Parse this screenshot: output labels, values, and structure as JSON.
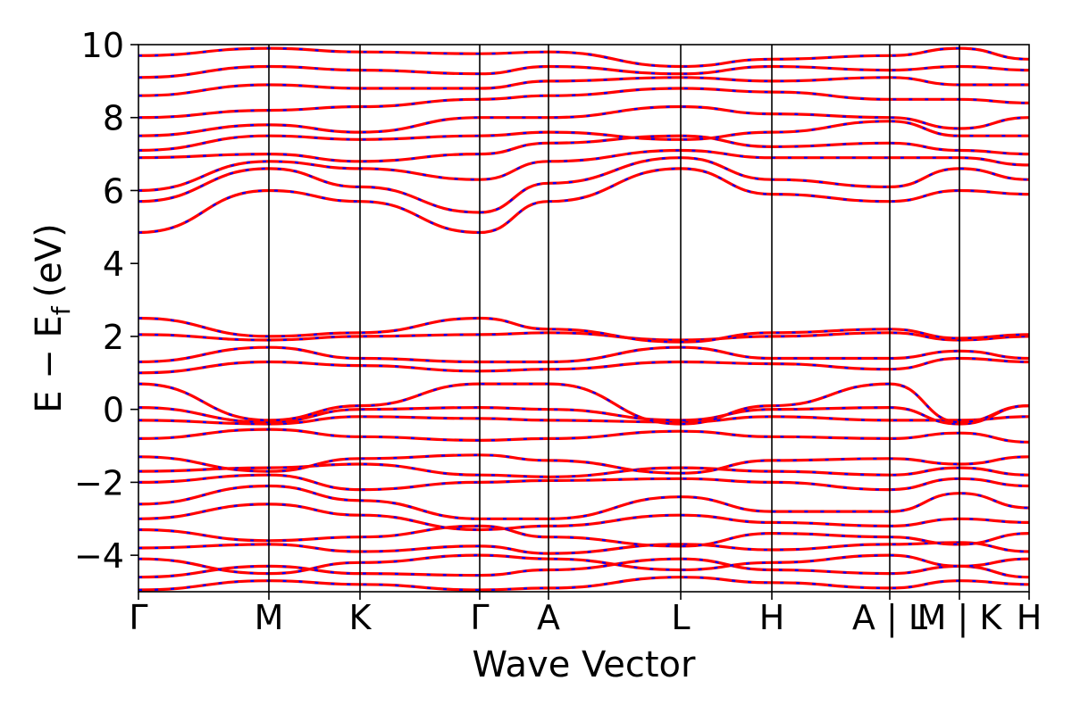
{
  "chart_data": {
    "type": "line",
    "title": "",
    "xlabel": "Wave Vector",
    "ylabel_main": "E − E",
    "ylabel_sub": "f",
    "ylabel_unit": "(eV)",
    "ylim": [
      -5,
      10
    ],
    "yticks": [
      -4,
      -2,
      0,
      2,
      4,
      6,
      8,
      10
    ],
    "ytick_labels": [
      "−4",
      "−2",
      "0",
      "2",
      "4",
      "6",
      "8",
      "10"
    ],
    "grid": false,
    "legend": "none",
    "path_segments": [
      {
        "labels": [
          "Γ",
          "M",
          "K",
          "Γ",
          "A",
          "L",
          "H",
          "A"
        ],
        "x": [
          0,
          1.46,
          2.48,
          3.82,
          4.59,
          6.07,
          7.09,
          8.41
        ]
      },
      {
        "labels": [
          "L",
          "M"
        ],
        "x": [
          8.41,
          9.19
        ]
      },
      {
        "labels": [
          "K",
          "H"
        ],
        "x": [
          9.19,
          9.97
        ]
      }
    ],
    "xtick_labels": [
      "Γ",
      "M",
      "K",
      "Γ",
      "A",
      "L",
      "H",
      "A | L",
      "M | K",
      "H"
    ],
    "series_colors": {
      "spin_up": "#ff0000",
      "spin_down": "#0000ff"
    },
    "bands": [
      {
        "x": [
          0,
          1.46,
          2.48,
          3.82,
          4.59,
          6.07,
          7.09,
          8.41,
          9.19,
          9.97
        ],
        "y": [
          -4.95,
          -4.7,
          -4.8,
          -4.95,
          -4.9,
          -4.6,
          -4.75,
          -4.9,
          -4.7,
          -4.8
        ]
      },
      {
        "x": [
          0,
          1.46,
          2.48,
          3.82,
          4.59,
          6.07,
          7.09,
          8.41,
          9.19,
          9.97
        ],
        "y": [
          -4.6,
          -4.3,
          -4.5,
          -4.55,
          -4.4,
          -4.1,
          -4.4,
          -4.5,
          -4.3,
          -4.6
        ]
      },
      {
        "x": [
          0,
          1.46,
          2.48,
          3.82,
          4.59,
          6.07,
          7.09,
          8.41,
          9.19,
          9.97
        ],
        "y": [
          -4.1,
          -4.5,
          -4.2,
          -4.0,
          -4.1,
          -4.4,
          -4.2,
          -4.0,
          -4.3,
          -4.1
        ]
      },
      {
        "x": [
          0,
          1.46,
          2.48,
          3.82,
          4.59,
          6.07,
          7.09,
          8.41,
          9.19,
          9.97
        ],
        "y": [
          -3.8,
          -3.7,
          -3.9,
          -3.75,
          -3.95,
          -3.7,
          -3.85,
          -3.7,
          -3.65,
          -3.9
        ]
      },
      {
        "x": [
          0,
          1.46,
          2.48,
          3.82,
          4.59,
          6.07,
          7.09,
          8.41,
          9.19,
          9.97
        ],
        "y": [
          -3.3,
          -3.6,
          -3.5,
          -3.2,
          -3.5,
          -3.75,
          -3.4,
          -3.5,
          -3.7,
          -3.4
        ]
      },
      {
        "x": [
          0,
          1.46,
          2.48,
          3.82,
          4.59,
          6.07,
          7.09,
          8.41,
          9.19,
          9.97
        ],
        "y": [
          -3.0,
          -2.6,
          -2.9,
          -3.3,
          -3.2,
          -2.9,
          -3.1,
          -3.2,
          -3.0,
          -3.1
        ]
      },
      {
        "x": [
          0,
          1.46,
          2.48,
          3.82,
          4.59,
          6.07,
          7.09,
          8.41,
          9.19,
          9.97
        ],
        "y": [
          -2.6,
          -2.1,
          -2.5,
          -3.0,
          -3.0,
          -2.4,
          -2.8,
          -2.8,
          -2.3,
          -2.7
        ]
      },
      {
        "x": [
          0,
          1.46,
          2.48,
          3.82,
          4.59,
          6.07,
          7.09,
          8.41,
          9.19,
          9.97
        ],
        "y": [
          -2.0,
          -1.8,
          -2.2,
          -2.0,
          -1.95,
          -1.9,
          -2.0,
          -2.2,
          -1.9,
          -2.1
        ]
      },
      {
        "x": [
          0,
          1.46,
          2.48,
          3.82,
          4.59,
          6.07,
          7.09,
          8.41,
          9.19,
          9.97
        ],
        "y": [
          -1.7,
          -1.6,
          -1.5,
          -1.8,
          -1.85,
          -1.6,
          -1.7,
          -1.8,
          -1.6,
          -1.8
        ]
      },
      {
        "x": [
          0,
          1.46,
          2.48,
          3.82,
          4.59,
          6.07,
          7.09,
          8.41,
          9.19,
          9.97
        ],
        "y": [
          -1.3,
          -1.7,
          -1.35,
          -1.25,
          -1.4,
          -1.75,
          -1.4,
          -1.35,
          -1.5,
          -1.3
        ]
      },
      {
        "x": [
          0,
          1.46,
          2.48,
          3.82,
          4.59,
          6.07,
          7.09,
          8.41,
          9.19,
          9.97
        ],
        "y": [
          -0.8,
          -0.55,
          -0.75,
          -0.85,
          -0.8,
          -0.6,
          -0.75,
          -0.8,
          -0.65,
          -0.9
        ]
      },
      {
        "x": [
          0,
          1.46,
          2.48,
          3.82,
          4.59,
          6.07,
          7.09,
          8.41,
          9.19,
          9.97
        ],
        "y": [
          -0.3,
          -0.4,
          -0.2,
          -0.25,
          -0.3,
          -0.35,
          -0.2,
          -0.3,
          -0.3,
          -0.2
        ]
      },
      {
        "x": [
          0,
          1.46,
          2.48,
          3.82,
          4.59,
          6.07,
          7.09,
          8.41,
          9.19,
          9.97
        ],
        "y": [
          0.05,
          -0.35,
          0.0,
          0.05,
          0.0,
          -0.3,
          0.0,
          0.05,
          -0.4,
          0.1
        ]
      },
      {
        "x": [
          0,
          1.46,
          2.48,
          3.82,
          4.59,
          6.07,
          7.09,
          8.41,
          9.19,
          9.97
        ],
        "y": [
          0.7,
          -0.3,
          0.1,
          0.7,
          0.7,
          -0.4,
          0.1,
          0.7,
          -0.35,
          0.1
        ]
      },
      {
        "x": [
          0,
          1.46,
          2.48,
          3.82,
          4.59,
          6.07,
          7.09,
          8.41,
          9.19,
          9.97
        ],
        "y": [
          1.0,
          1.3,
          1.2,
          1.05,
          1.1,
          1.3,
          1.25,
          1.1,
          1.4,
          1.3
        ]
      },
      {
        "x": [
          0,
          1.46,
          2.48,
          3.82,
          4.59,
          6.07,
          7.09,
          8.41,
          9.19,
          9.97
        ],
        "y": [
          1.3,
          1.7,
          1.4,
          1.3,
          1.3,
          1.7,
          1.4,
          1.4,
          1.6,
          1.4
        ]
      },
      {
        "x": [
          0,
          1.46,
          2.48,
          3.82,
          4.59,
          6.07,
          7.09,
          8.41,
          9.19,
          9.97
        ],
        "y": [
          2.05,
          1.9,
          2.0,
          2.05,
          2.1,
          1.9,
          2.0,
          2.1,
          1.9,
          2.0
        ]
      },
      {
        "x": [
          0,
          1.46,
          2.48,
          3.82,
          4.59,
          6.07,
          7.09,
          8.41,
          9.19,
          9.97
        ],
        "y": [
          2.5,
          2.0,
          2.1,
          2.5,
          2.2,
          1.85,
          2.1,
          2.2,
          1.95,
          2.05
        ]
      },
      {
        "x": [
          0,
          1.46,
          2.48,
          3.82,
          4.59,
          6.07,
          7.09,
          8.41,
          9.19,
          9.97
        ],
        "y": [
          4.85,
          6.0,
          5.7,
          4.85,
          5.7,
          6.6,
          5.9,
          5.7,
          6.0,
          5.9
        ]
      },
      {
        "x": [
          0,
          1.46,
          2.48,
          3.82,
          4.59,
          6.07,
          7.09,
          8.41,
          9.19,
          9.97
        ],
        "y": [
          5.7,
          6.6,
          6.1,
          5.4,
          6.2,
          6.9,
          6.3,
          6.1,
          6.6,
          6.3
        ]
      },
      {
        "x": [
          0,
          1.46,
          2.48,
          3.82,
          4.59,
          6.07,
          7.09,
          8.41,
          9.19,
          9.97
        ],
        "y": [
          6.0,
          6.8,
          6.6,
          6.3,
          6.8,
          7.1,
          6.9,
          6.9,
          6.9,
          6.7
        ]
      },
      {
        "x": [
          0,
          1.46,
          2.48,
          3.82,
          4.59,
          6.07,
          7.09,
          8.41,
          9.19,
          9.97
        ],
        "y": [
          6.9,
          7.0,
          6.8,
          7.0,
          7.3,
          7.5,
          7.2,
          7.3,
          7.1,
          7.0
        ]
      },
      {
        "x": [
          0,
          1.46,
          2.48,
          3.82,
          4.59,
          6.07,
          7.09,
          8.41,
          9.19,
          9.97
        ],
        "y": [
          7.1,
          7.5,
          7.4,
          7.5,
          7.6,
          7.4,
          7.6,
          7.9,
          7.5,
          7.5
        ]
      },
      {
        "x": [
          0,
          1.46,
          2.48,
          3.82,
          4.59,
          6.07,
          7.09,
          8.41,
          9.19,
          9.97
        ],
        "y": [
          7.5,
          7.8,
          7.6,
          8.0,
          8.0,
          8.3,
          8.1,
          8.0,
          7.7,
          8.0
        ]
      },
      {
        "x": [
          0,
          1.46,
          2.48,
          3.82,
          4.59,
          6.07,
          7.09,
          8.41,
          9.19,
          9.97
        ],
        "y": [
          8.0,
          8.2,
          8.3,
          8.5,
          8.6,
          8.8,
          8.7,
          8.5,
          8.5,
          8.4
        ]
      },
      {
        "x": [
          0,
          1.46,
          2.48,
          3.82,
          4.59,
          6.07,
          7.09,
          8.41,
          9.19,
          9.97
        ],
        "y": [
          8.6,
          8.9,
          8.8,
          8.8,
          9.0,
          9.1,
          9.0,
          9.1,
          8.9,
          8.9
        ]
      },
      {
        "x": [
          0,
          1.46,
          2.48,
          3.82,
          4.59,
          6.07,
          7.09,
          8.41,
          9.19,
          9.97
        ],
        "y": [
          9.1,
          9.4,
          9.3,
          9.2,
          9.4,
          9.2,
          9.4,
          9.3,
          9.4,
          9.3
        ]
      },
      {
        "x": [
          0,
          1.46,
          2.48,
          3.82,
          4.59,
          6.07,
          7.09,
          8.41,
          9.19,
          9.97
        ],
        "y": [
          9.7,
          9.9,
          9.8,
          9.75,
          9.8,
          9.4,
          9.6,
          9.7,
          9.9,
          9.6
        ]
      }
    ]
  }
}
